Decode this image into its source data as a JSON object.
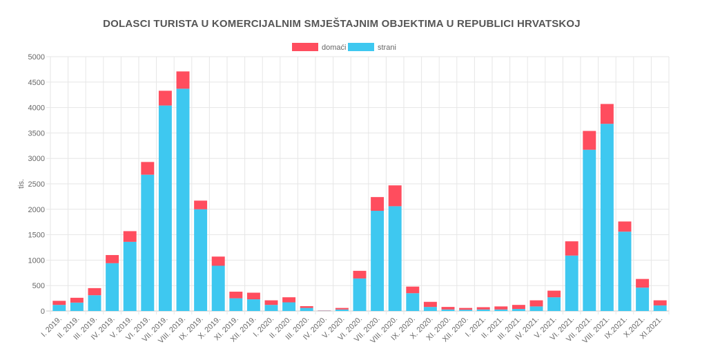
{
  "chart_data": {
    "type": "bar",
    "stacked": true,
    "title": "DOLASCI TURISTA U KOMERCIJALNIM SMJEŠTAJNIM OBJEKTIMA U REPUBLICI HRVATSKOJ",
    "ylabel": "tis.",
    "xlabel": "",
    "ylim": [
      0,
      5000
    ],
    "yticks": [
      "0",
      "500",
      "1000",
      "1500",
      "2000",
      "2500",
      "3000",
      "3500",
      "4000",
      "4500",
      "5000"
    ],
    "grid": true,
    "legend_position": "top-center",
    "categories": [
      "I. 2019.",
      "II. 2019.",
      "III. 2019.",
      "IV. 2019.",
      "V. 2019.",
      "VI. 2019.",
      "VII. 2019.",
      "VIII. 2019.",
      "IX. 2019.",
      "X. 2019.",
      "XI. 2019.",
      "XII. 2019.",
      "I. 2020.",
      "II. 2020.",
      "III. 2020.",
      "IV. 2020.",
      "V. 2020.",
      "VI. 2020.",
      "VII. 2020.",
      "VIII. 2020.",
      "IX. 2020.",
      "X. 2020.",
      "XI. 2020.",
      "XII. 2020.",
      "I. 2021.",
      "II. 2021.",
      "III. 2021.",
      "IV. 2021.",
      "V. 2021.",
      "VI. 2021.",
      "VII. 2021.",
      "VIII. 2021.",
      "IX.2021.",
      "X.2021.",
      "XI.2021."
    ],
    "series": [
      {
        "name": "strani",
        "color": "#3ec8f0",
        "values": [
          120,
          165,
          310,
          940,
          1360,
          2680,
          4040,
          4370,
          2000,
          890,
          250,
          230,
          120,
          170,
          60,
          5,
          30,
          640,
          1970,
          2060,
          350,
          80,
          30,
          25,
          30,
          30,
          40,
          90,
          270,
          1090,
          3170,
          3680,
          1560,
          460,
          110
        ]
      },
      {
        "name": "domaći",
        "color": "#ff4d5e",
        "values": [
          80,
          95,
          140,
          160,
          210,
          250,
          290,
          340,
          170,
          180,
          130,
          130,
          90,
          100,
          35,
          5,
          30,
          150,
          270,
          410,
          130,
          100,
          50,
          35,
          45,
          60,
          80,
          120,
          130,
          280,
          370,
          390,
          200,
          170,
          100
        ]
      }
    ]
  }
}
